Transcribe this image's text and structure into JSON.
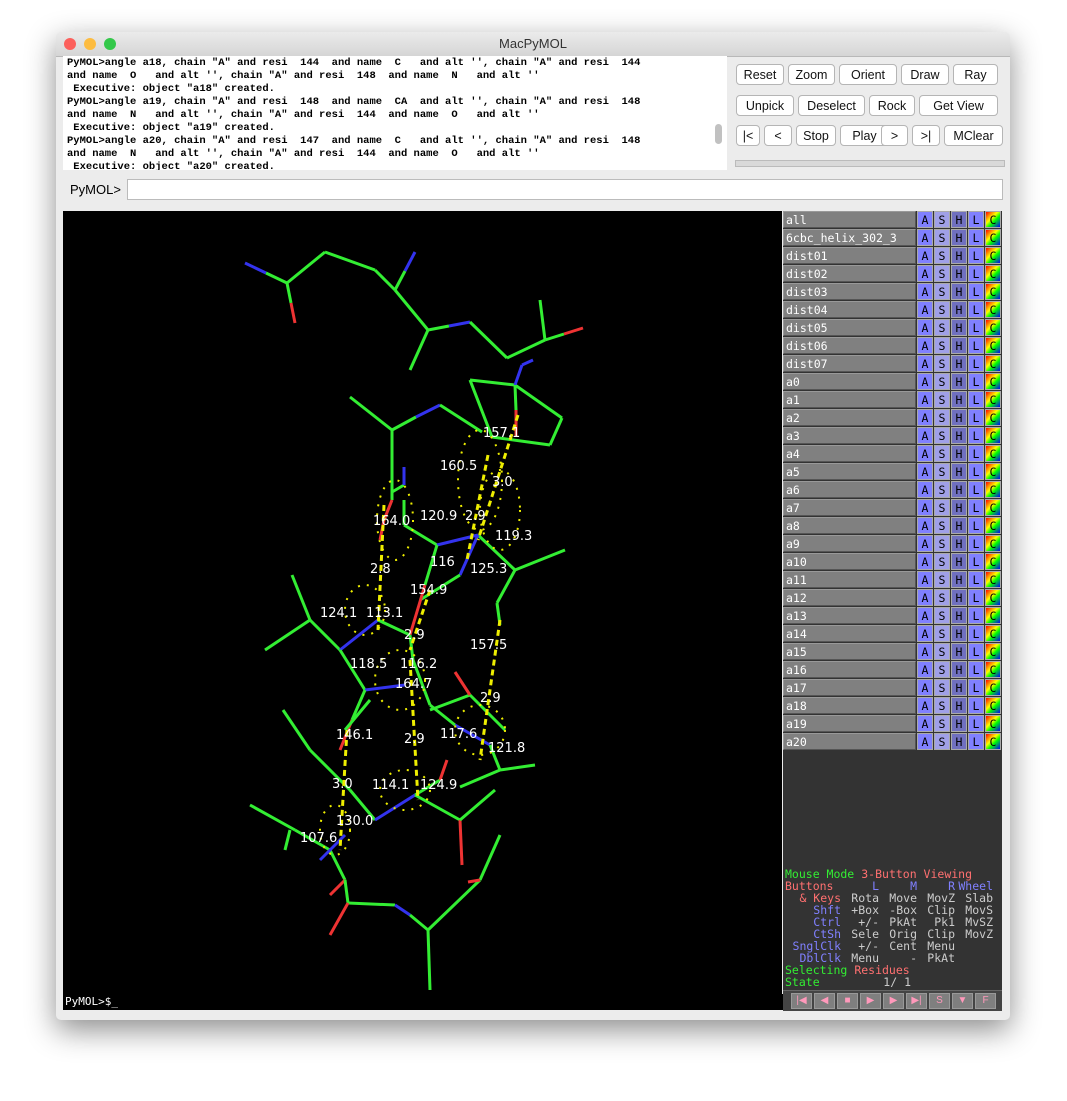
{
  "window": {
    "title": "MacPyMOL"
  },
  "console": {
    "lines": [
      "PyMOL>angle a18, chain \"A\" and resi  144  and name  C   and alt '', chain \"A\" and resi  144",
      "and name  O   and alt '', chain \"A\" and resi  148  and name  N   and alt ''",
      " Executive: object \"a18\" created.",
      "PyMOL>angle a19, chain \"A\" and resi  148  and name  CA  and alt '', chain \"A\" and resi  148",
      "and name  N   and alt '', chain \"A\" and resi  144  and name  O   and alt ''",
      " Executive: object \"a19\" created.",
      "PyMOL>angle a20, chain \"A\" and resi  147  and name  C   and alt '', chain \"A\" and resi  148",
      "and name  N   and alt '', chain \"A\" and resi  144  and name  O   and alt ''",
      " Executive: object \"a20\" created."
    ]
  },
  "buttons": {
    "row1": [
      "Reset",
      "Zoom",
      "Orient",
      "Draw",
      "Ray"
    ],
    "row2": [
      "Unpick",
      "Deselect",
      "Rock",
      "Get View"
    ],
    "row3": [
      "|<",
      "<",
      "Stop",
      "Play",
      ">",
      ">|",
      "MClear"
    ]
  },
  "command": {
    "prompt": "PyMOL>",
    "value": ""
  },
  "viewer": {
    "bottom_prompt": "PyMOL>$_",
    "labels": [
      "157.1",
      "160.5",
      "3.0",
      "164.0",
      "120.9",
      "2.9",
      "119.3",
      "2.8",
      "116",
      "125.3",
      "154.9",
      "124.1",
      "113.1",
      "2.9",
      "157.5",
      "118.5",
      "116.2",
      "164.7",
      "2.9",
      "146.1",
      "117.6",
      "121.8",
      "2.9",
      "3.0",
      "114.1",
      "124.9",
      "130.0",
      "107.6"
    ],
    "colors": {
      "carbon": "#33ee33",
      "nitrogen": "#3333ee",
      "oxygen": "#ee3333",
      "hbond": "#eeee00"
    }
  },
  "objects": {
    "buttons": [
      "A",
      "S",
      "H",
      "L",
      "C"
    ],
    "items": [
      "all",
      "6cbc_helix_302_3",
      "dist01",
      "dist02",
      "dist03",
      "dist04",
      "dist05",
      "dist06",
      "dist07",
      "a0",
      "a1",
      "a2",
      "a3",
      "a4",
      "a5",
      "a6",
      "a7",
      "a8",
      "a9",
      "a10",
      "a11",
      "a12",
      "a13",
      "a14",
      "a15",
      "a16",
      "a17",
      "a18",
      "a19",
      "a20"
    ]
  },
  "mouse_mode": {
    "title": "Mouse Mode",
    "mode": "3-Button Viewing",
    "header": [
      "Buttons",
      "L",
      "M",
      "R",
      "Wheel"
    ],
    "rows": [
      [
        "& Keys",
        "Rota",
        "Move",
        "MovZ",
        "Slab"
      ],
      [
        "Shft",
        "+Box",
        "-Box",
        "Clip",
        "MovS"
      ],
      [
        "Ctrl",
        "+/-",
        "PkAt",
        "Pk1",
        "MvSZ"
      ],
      [
        "CtSh",
        "Sele",
        "Orig",
        "Clip",
        "MovZ"
      ],
      [
        "SnglClk",
        "+/-",
        "Cent",
        "Menu",
        ""
      ],
      [
        "DblClk",
        "Menu",
        "-",
        "PkAt",
        ""
      ]
    ],
    "selecting": "Selecting",
    "selecting_value": "Residues",
    "state_label": "State",
    "state_value": "1/    1"
  },
  "player": {
    "buttons": [
      "|◀",
      "◀",
      "■",
      "▶",
      "▶",
      "▶|",
      "S",
      "▼",
      "F"
    ]
  }
}
